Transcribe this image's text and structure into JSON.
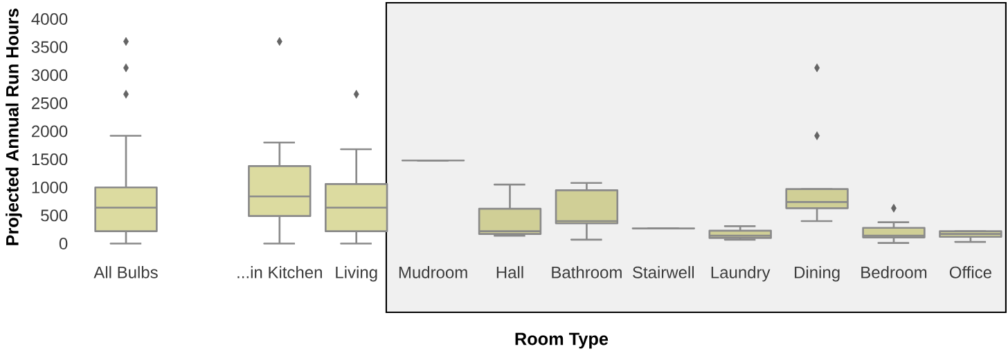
{
  "chart_data": {
    "type": "box",
    "xlabel": "Room Type",
    "ylabel": "Projected Annual Run Hours",
    "categories": [
      "All Bulbs",
      null,
      "...in Kitchen",
      "Living",
      "Mudroom",
      "Hall",
      "Bathroom",
      "Stairwell",
      "Laundry",
      "Dining",
      "Bedroom",
      "Office"
    ],
    "colors": [
      "#dcdba0",
      null,
      "#dcdba0",
      "#dcdba0",
      "#8a8a8a",
      "#d0cf96",
      "#d0cf96",
      "#8a8a8a",
      "#d0cf96",
      "#d0cf96",
      "#d0cf96",
      "#d0cf96"
    ],
    "marker": "diamond",
    "boxes": [
      {
        "low": 0,
        "q1": 220,
        "median": 640,
        "q3": 1000,
        "high": 1920,
        "outliers": [
          2660,
          3130,
          3600
        ]
      },
      null,
      {
        "low": 0,
        "q1": 490,
        "median": 840,
        "q3": 1380,
        "high": 1800,
        "outliers": [
          3600
        ]
      },
      {
        "low": 0,
        "q1": 220,
        "median": 640,
        "q3": 1060,
        "high": 1680,
        "outliers": [
          2660
        ]
      },
      {
        "low": 1480,
        "q1": 1480,
        "median": 1480,
        "q3": 1480,
        "high": 1480
      },
      {
        "low": 140,
        "q1": 170,
        "median": 220,
        "q3": 620,
        "high": 1050
      },
      {
        "low": 70,
        "q1": 360,
        "median": 400,
        "q3": 950,
        "high": 1080
      },
      {
        "low": 270,
        "q1": 270,
        "median": 270,
        "q3": 270,
        "high": 270
      },
      {
        "low": 70,
        "q1": 100,
        "median": 140,
        "q3": 230,
        "high": 310
      },
      {
        "low": 400,
        "q1": 630,
        "median": 740,
        "q3": 970,
        "high": 970,
        "outliers": [
          1920,
          3130
        ]
      },
      {
        "low": 10,
        "q1": 110,
        "median": 140,
        "q3": 280,
        "high": 380,
        "outliers": [
          630
        ]
      },
      {
        "low": 30,
        "q1": 120,
        "median": 170,
        "q3": 220,
        "high": 220
      }
    ],
    "ylim": [
      0,
      4000
    ],
    "yticks": [
      0,
      500,
      1000,
      1500,
      2000,
      2500,
      3000,
      3500,
      4000
    ],
    "bands": [
      {
        "axis": "x",
        "from": "Mudroom",
        "to": "Office",
        "color": "#f0f0f0"
      }
    ]
  }
}
